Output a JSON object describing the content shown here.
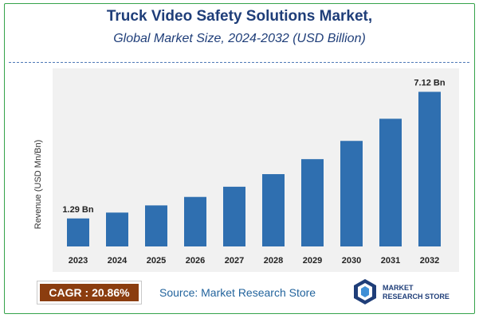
{
  "header": {
    "title": "Truck Video Safety Solutions Market,",
    "subtitle": "Global Market Size, 2024-2032 (USD Billion)"
  },
  "footer": {
    "cagr": "CAGR :  20.86%",
    "source": "Source: Market Research Store",
    "logo_line1": "MARKET",
    "logo_line2": "RESEARCH STORE"
  },
  "colors": {
    "bar": "#2f6fb0",
    "title": "#1f3e79",
    "cagr_bg": "#8b3d0f",
    "frame": "#35a34a"
  },
  "chart_data": {
    "type": "bar",
    "title": "Truck Video Safety Solutions Market,",
    "subtitle": "Global Market Size, 2024-2032 (USD Billion)",
    "ylabel": "Revenue (USD Mn/Bn)",
    "xlabel": "",
    "categories": [
      "2023",
      "2024",
      "2025",
      "2026",
      "2027",
      "2028",
      "2029",
      "2030",
      "2031",
      "2032"
    ],
    "values": [
      1.29,
      1.56,
      1.89,
      2.28,
      2.75,
      3.33,
      4.02,
      4.86,
      5.88,
      7.12
    ],
    "data_labels": [
      {
        "index": 0,
        "text": "1.29 Bn"
      },
      {
        "index": 9,
        "text": "7.12 Bn"
      }
    ],
    "ylim": [
      0,
      8.2
    ],
    "grid": false,
    "legend": "none"
  }
}
